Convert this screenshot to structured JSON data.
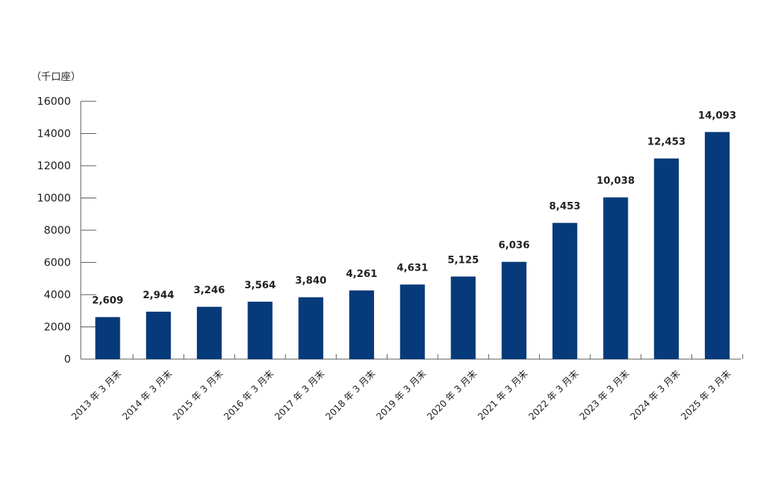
{
  "chart_data": {
    "type": "bar",
    "unit_label": "（千口座）",
    "categories": [
      "2013 年 3 月末",
      "2014 年 3 月末",
      "2015 年 3 月末",
      "2016 年 3 月末",
      "2017 年 3 月末",
      "2018 年 3 月末",
      "2019 年 3 月末",
      "2020 年 3 月末",
      "2021 年 3 月末",
      "2022 年 3 月末",
      "2023 年 3 月末",
      "2024 年 3 月末",
      "2025 年 3 月末"
    ],
    "values": [
      2609,
      2944,
      3246,
      3564,
      3840,
      4261,
      4631,
      5125,
      6036,
      8453,
      10038,
      12453,
      14093
    ],
    "data_labels": [
      "2,609",
      "2,944",
      "3,246",
      "3,564",
      "3,840",
      "4,261",
      "4,631",
      "5,125",
      "6,036",
      "8,453",
      "10,038",
      "12,453",
      "14,093"
    ],
    "yticks": [
      "0",
      "2000",
      "4000",
      "6000",
      "8000",
      "10000",
      "12000",
      "14000",
      "16000"
    ],
    "ylim": [
      0,
      16000
    ],
    "grid": false,
    "colors": {
      "bar": "#063a7a"
    }
  }
}
